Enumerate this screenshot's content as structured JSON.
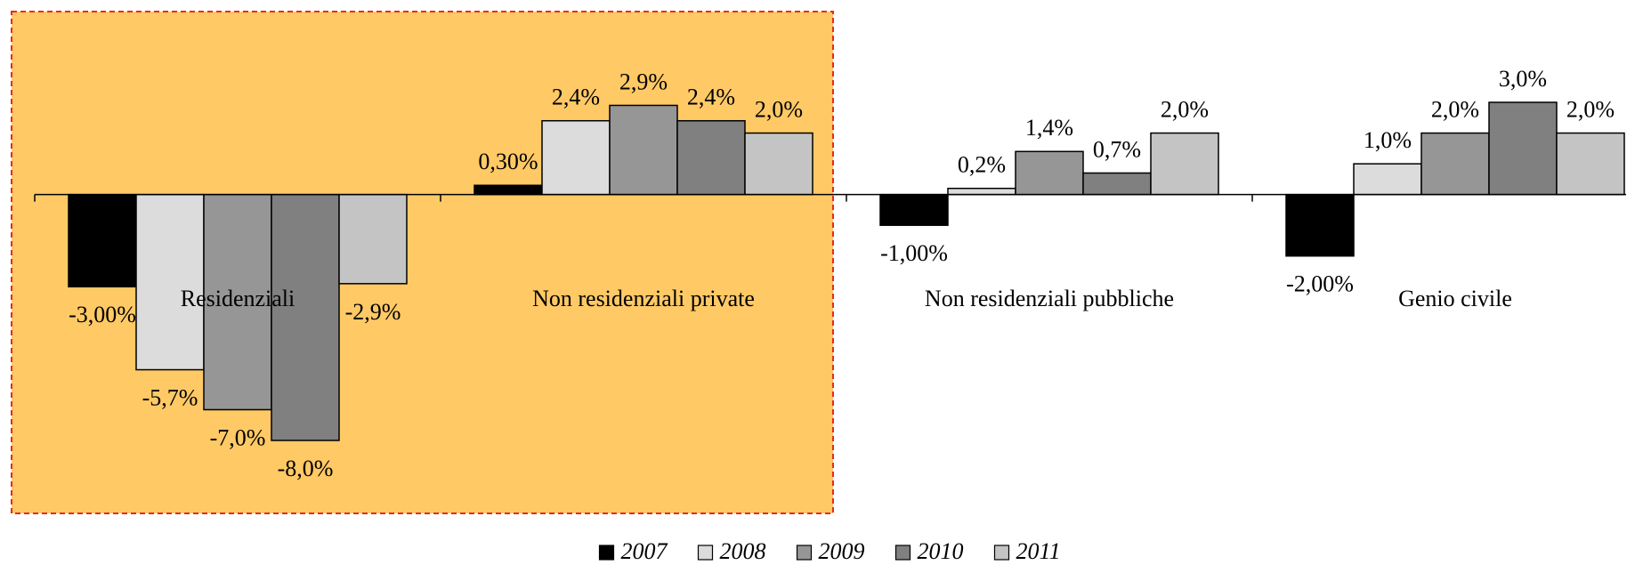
{
  "chart_data": {
    "type": "bar",
    "categories": [
      "Residenziali",
      "Non residenziali private",
      "Non residenziali pubbliche",
      "Genio civile"
    ],
    "series": [
      {
        "name": "2007",
        "color": "#000000",
        "values": [
          -3.0,
          0.3,
          -1.0,
          -2.0
        ],
        "value_labels": [
          "-3,00%",
          "0,30%",
          "-1,00%",
          "-2,00%"
        ]
      },
      {
        "name": "2008",
        "color": "#dcdcdc",
        "values": [
          -5.7,
          2.4,
          0.2,
          1.0
        ],
        "value_labels": [
          "-5,7%",
          "2,4%",
          "0,2%",
          "1,0%"
        ]
      },
      {
        "name": "2009",
        "color": "#969696",
        "values": [
          -7.0,
          2.9,
          1.4,
          2.0
        ],
        "value_labels": [
          "-7,0%",
          "2,9%",
          "1,4%",
          "2,0%"
        ]
      },
      {
        "name": "2010",
        "color": "#808080",
        "values": [
          -8.0,
          2.4,
          0.7,
          3.0
        ],
        "value_labels": [
          "-8,0%",
          "2,4%",
          "0,7%",
          "3,0%"
        ]
      },
      {
        "name": "2011",
        "color": "#c4c4c4",
        "values": [
          -2.9,
          2.0,
          2.0,
          2.0
        ],
        "value_labels": [
          "-2,9%",
          "2,0%",
          "2,0%",
          "2,0%"
        ]
      }
    ],
    "legend": "bottom"
  }
}
